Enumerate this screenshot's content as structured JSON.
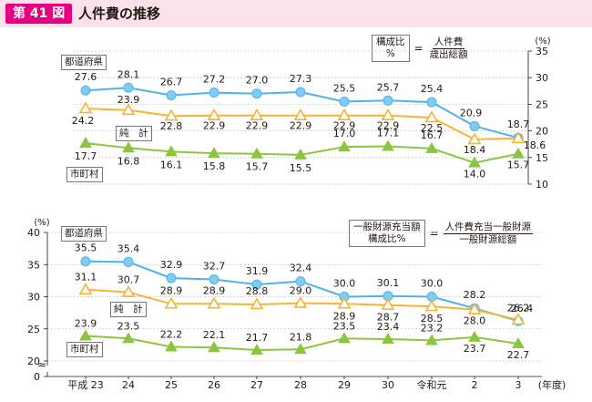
{
  "header": {
    "badge": "第 41 図",
    "title": "人件費の推移"
  },
  "formulas": {
    "top": {
      "lhs_line1": "構成比",
      "lhs_line2": "%",
      "eq": "=",
      "numerator": "人件費",
      "denominator": "歳出総額"
    },
    "bottom": {
      "lhs_line1": "一般財源充当額",
      "lhs_line2": "構成比%",
      "eq": "=",
      "numerator": "人件費充当一般財源",
      "denominator": "一般財源総額"
    }
  },
  "colors": {
    "prefecture": "#4fb3e8",
    "prefecture_marker": "#7fcdf2",
    "net": "#f5b436",
    "net_marker_fill": "#ffffff",
    "municipal": "#8cc63f",
    "grid": "#c8c8c8",
    "axis": "#231815"
  },
  "chart_data": [
    {
      "type": "line",
      "title": "構成比",
      "unit_label": "(%)",
      "axis_side": "right",
      "ylim": [
        10,
        35
      ],
      "yticks": [
        10,
        15,
        20,
        25,
        30,
        35
      ],
      "categories": [
        "平成 23",
        "24",
        "25",
        "26",
        "27",
        "28",
        "29",
        "30",
        "令和元",
        "2",
        "3"
      ],
      "series": [
        {
          "name": "都道府県",
          "marker": "circle",
          "values": [
            27.6,
            28.1,
            26.7,
            27.2,
            27.0,
            27.3,
            25.5,
            25.7,
            25.4,
            20.9,
            18.7
          ],
          "labels": [
            "27.6",
            "28.1",
            "26.7",
            "27.2",
            "27.0",
            "27.3",
            "25.5",
            "25.7",
            "25.4",
            "20.9",
            "18.7"
          ]
        },
        {
          "name": "純　計",
          "marker": "triangle-open",
          "values": [
            24.2,
            23.9,
            22.8,
            22.9,
            22.9,
            22.9,
            22.9,
            22.9,
            22.5,
            18.4,
            18.6
          ],
          "labels": [
            "24.2",
            "23.9",
            "22.8",
            "22.9",
            "22.9",
            "22.9",
            "22.9",
            "22.9",
            "22.5",
            "18.4",
            "18.6"
          ]
        },
        {
          "name": "市町村",
          "marker": "triangle",
          "values": [
            17.7,
            16.8,
            16.1,
            15.8,
            15.7,
            15.5,
            17.0,
            17.1,
            16.7,
            14.0,
            15.7
          ],
          "labels": [
            "17.7",
            "16.8",
            "16.1",
            "15.8",
            "15.7",
            "15.5",
            "17.0",
            "17.1",
            "16.7",
            "14.0",
            "15.7"
          ]
        }
      ]
    },
    {
      "type": "line",
      "title": "一般財源充当額構成比",
      "unit_label": "(%)",
      "axis_side": "left",
      "ylim": [
        20,
        40
      ],
      "yticks": [
        0,
        20,
        25,
        30,
        35,
        40
      ],
      "axis_break": "≈",
      "x_unit_label": "(年度)",
      "categories": [
        "平成 23",
        "24",
        "25",
        "26",
        "27",
        "28",
        "29",
        "30",
        "令和元",
        "2",
        "3"
      ],
      "series": [
        {
          "name": "都道府県",
          "marker": "circle",
          "values": [
            35.5,
            35.4,
            32.9,
            32.7,
            31.9,
            32.4,
            30.0,
            30.1,
            30.0,
            28.2,
            26.2
          ],
          "labels": [
            "35.5",
            "35.4",
            "32.9",
            "32.7",
            "31.9",
            "32.4",
            "30.0",
            "30.1",
            "30.0",
            "28.2",
            "26.2"
          ]
        },
        {
          "name": "純　計",
          "marker": "triangle-open",
          "values": [
            31.1,
            30.7,
            28.9,
            28.9,
            28.8,
            29.0,
            28.9,
            28.7,
            28.5,
            28.0,
            26.4
          ],
          "labels": [
            "31.1",
            "30.7",
            "28.9",
            "28.9",
            "28.8",
            "29.0",
            "28.9",
            "28.7",
            "28.5",
            "28.0",
            "26.4"
          ]
        },
        {
          "name": "市町村",
          "marker": "triangle",
          "values": [
            23.9,
            23.5,
            22.2,
            22.1,
            21.7,
            21.8,
            23.5,
            23.4,
            23.2,
            23.7,
            22.7
          ],
          "labels": [
            "23.9",
            "23.5",
            "22.2",
            "22.1",
            "21.7",
            "21.8",
            "23.5",
            "23.4",
            "23.2",
            "23.7",
            "22.7"
          ]
        }
      ]
    }
  ]
}
